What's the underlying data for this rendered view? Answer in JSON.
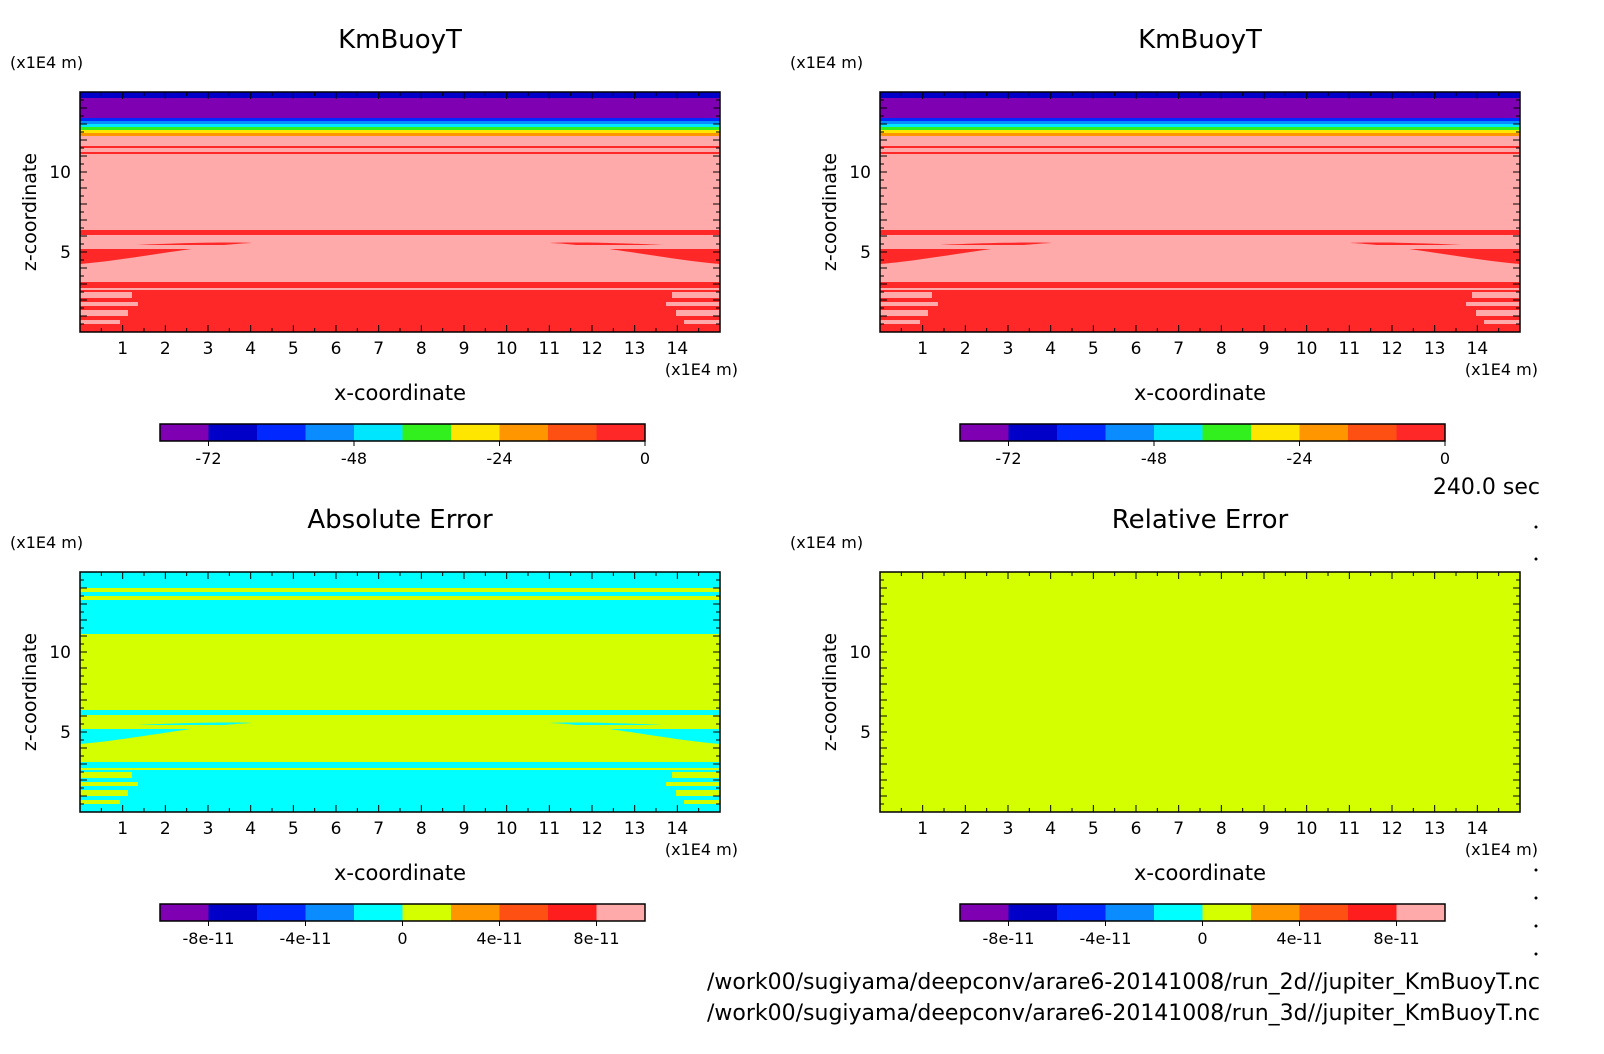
{
  "colors": {
    "kmbuoy_scale": [
      "#7f00b2",
      "#0000c8",
      "#0028ff",
      "#0a8cff",
      "#00e6ff",
      "#32f01e",
      "#ffe600",
      "#ff9600",
      "#ff5014",
      "#ff2828"
    ],
    "error_scale": [
      "#7f00b2",
      "#0000c8",
      "#0028ff",
      "#0a8cff",
      "#00ffff",
      "#d4ff00",
      "#ff9600",
      "#ff5014",
      "#ff1e1e",
      "#ffaaaa"
    ],
    "kmbuoy_field": {
      "bright_red": "#ff2828",
      "pink": "#ffaaaa",
      "orange": "#ff9600",
      "green": "#32f01e",
      "cyan": "#00e6ff",
      "blue": "#0000c8",
      "purple": "#7f00b2"
    },
    "error_field": {
      "cyan": "#00ffff",
      "lime": "#d4ff00"
    }
  },
  "time_label": "240.0 sec",
  "files": [
    "/work00/sugiyama/deepconv/arare6-20141008/run_2d//jupiter_KmBuoyT.nc",
    "/work00/sugiyama/deepconv/arare6-20141008/run_3d//jupiter_KmBuoyT.nc"
  ],
  "chart_data": [
    {
      "type": "heatmap",
      "title": "KmBuoyT",
      "xlabel": "x-coordinate",
      "ylabel": "z-coordinate",
      "x_unit": "(x1E4 m)",
      "y_unit": "(x1E4 m)",
      "xlim": [
        0,
        15
      ],
      "ylim": [
        0,
        15
      ],
      "xticks": [
        "1",
        "2",
        "3",
        "4",
        "5",
        "6",
        "7",
        "8",
        "9",
        "10",
        "11",
        "12",
        "13",
        "14"
      ],
      "yticks": [
        "5",
        "10"
      ],
      "colorbar": {
        "ticks": [
          "-72",
          "-48",
          "-24",
          "0"
        ],
        "range": [
          -80,
          0
        ],
        "levels": 10,
        "scale": "kmbuoy_scale"
      },
      "field": "kmbuoy",
      "value_note": "KmBuoyT is ~0 (red/pink) from surface to ~12.5; sharply negative near top (down to about -80 above ~13)"
    },
    {
      "type": "heatmap",
      "title": "KmBuoyT",
      "xlabel": "x-coordinate",
      "ylabel": "z-coordinate",
      "x_unit": "(x1E4 m)",
      "y_unit": "(x1E4 m)",
      "xlim": [
        0,
        15
      ],
      "ylim": [
        0,
        15
      ],
      "xticks": [
        "1",
        "2",
        "3",
        "4",
        "5",
        "6",
        "7",
        "8",
        "9",
        "10",
        "11",
        "12",
        "13",
        "14"
      ],
      "yticks": [
        "5",
        "10"
      ],
      "colorbar": {
        "ticks": [
          "-72",
          "-48",
          "-24",
          "0"
        ],
        "range": [
          -80,
          0
        ],
        "levels": 10,
        "scale": "kmbuoy_scale"
      },
      "field": "kmbuoy"
    },
    {
      "type": "heatmap",
      "title": "Absolute Error",
      "xlabel": "x-coordinate",
      "ylabel": "z-coordinate",
      "x_unit": "(x1E4 m)",
      "y_unit": "(x1E4 m)",
      "xlim": [
        0,
        15
      ],
      "ylim": [
        0,
        15
      ],
      "xticks": [
        "1",
        "2",
        "3",
        "4",
        "5",
        "6",
        "7",
        "8",
        "9",
        "10",
        "11",
        "12",
        "13",
        "14"
      ],
      "yticks": [
        "5",
        "10"
      ],
      "colorbar": {
        "ticks": [
          "-8e-11",
          "-4e-11",
          "0",
          "4e-11",
          "8e-11"
        ],
        "range": [
          -1e-10,
          1e-10
        ],
        "levels": 10,
        "scale": "error_scale"
      },
      "field": "abs_error"
    },
    {
      "type": "heatmap",
      "title": "Relative Error",
      "xlabel": "x-coordinate",
      "ylabel": "z-coordinate",
      "x_unit": "(x1E4 m)",
      "y_unit": "(x1E4 m)",
      "xlim": [
        0,
        15
      ],
      "ylim": [
        0,
        15
      ],
      "xticks": [
        "1",
        "2",
        "3",
        "4",
        "5",
        "6",
        "7",
        "8",
        "9",
        "10",
        "11",
        "12",
        "13",
        "14"
      ],
      "yticks": [
        "5",
        "10"
      ],
      "colorbar": {
        "ticks": [
          "-8e-11",
          "-4e-11",
          "0",
          "4e-11",
          "8e-11"
        ],
        "range": [
          -1e-10,
          1e-10
        ],
        "levels": 10,
        "scale": "error_scale"
      },
      "field": "uniform_zero"
    }
  ]
}
